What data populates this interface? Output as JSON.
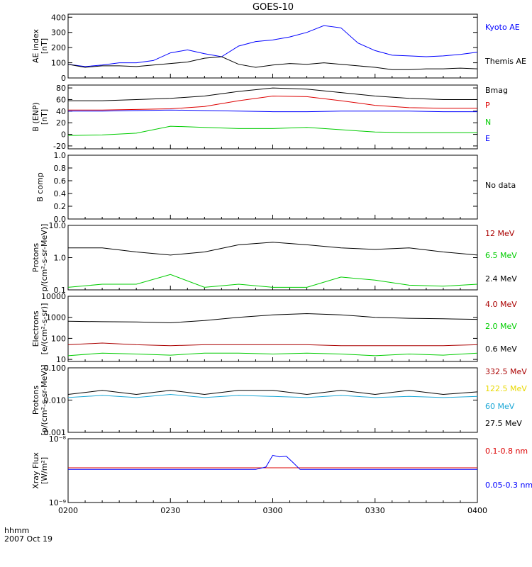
{
  "title": "GOES-10",
  "footer": {
    "line1": "hhmm",
    "line2": "2007 Oct 19"
  },
  "x_ticks": [
    "0200",
    "0230",
    "0300",
    "0330",
    "0400"
  ],
  "colors": {
    "black": "#000000",
    "blue": "#0000ff",
    "red": "#dd0000",
    "green": "#00cc00",
    "darkred": "#aa0000",
    "yellow": "#e8d800",
    "cyan": "#1ba7d6"
  },
  "chart_data": [
    {
      "id": "ae",
      "type": "line",
      "scale": "linear",
      "ylabel": [
        "AE index",
        "[nT]"
      ],
      "ylim": [
        0,
        420
      ],
      "yticks": [
        {
          "v": 0,
          "label": "0"
        },
        {
          "v": 100,
          "label": "100"
        },
        {
          "v": 200,
          "label": "200"
        },
        {
          "v": 300,
          "label": "300"
        },
        {
          "v": 400,
          "label": "400"
        }
      ],
      "legend": [
        {
          "label": "Kyoto AE",
          "color": "#0000ff"
        },
        {
          "label": "Themis AE",
          "color": "#000000"
        }
      ],
      "series": [
        {
          "name": "Kyoto AE",
          "color": "#0000ff",
          "x": [
            0,
            5,
            10,
            15,
            20,
            25,
            30,
            35,
            40,
            45,
            50,
            55,
            60,
            65,
            70,
            75,
            80,
            85,
            90,
            95,
            100,
            105,
            110,
            115,
            120
          ],
          "y": [
            90,
            75,
            85,
            100,
            100,
            115,
            165,
            185,
            160,
            140,
            210,
            240,
            250,
            270,
            300,
            345,
            330,
            230,
            180,
            150,
            145,
            140,
            145,
            155,
            170
          ]
        },
        {
          "name": "Themis AE",
          "color": "#000000",
          "x": [
            0,
            5,
            10,
            15,
            20,
            25,
            30,
            35,
            40,
            45,
            50,
            55,
            60,
            65,
            70,
            75,
            80,
            85,
            90,
            95,
            100,
            105,
            110,
            115,
            120
          ],
          "y": [
            90,
            70,
            80,
            80,
            75,
            85,
            95,
            105,
            130,
            140,
            90,
            70,
            85,
            95,
            90,
            100,
            90,
            80,
            70,
            55,
            55,
            60,
            60,
            65,
            60
          ]
        }
      ]
    },
    {
      "id": "b",
      "type": "line",
      "scale": "linear",
      "ylabel": [
        "B (ENP)",
        "[nT]"
      ],
      "ylim": [
        -25,
        85
      ],
      "yticks": [
        {
          "v": -20,
          "label": "-20"
        },
        {
          "v": 0,
          "label": "0"
        },
        {
          "v": 20,
          "label": "20"
        },
        {
          "v": 40,
          "label": "40"
        },
        {
          "v": 60,
          "label": "60"
        },
        {
          "v": 80,
          "label": "80"
        }
      ],
      "legend": [
        {
          "label": "Bmag",
          "color": "#000000"
        },
        {
          "label": "P",
          "color": "#dd0000"
        },
        {
          "label": "N",
          "color": "#00cc00"
        },
        {
          "label": "E",
          "color": "#0000ff"
        }
      ],
      "series": [
        {
          "name": "Bmag",
          "color": "#000000",
          "x": [
            0,
            10,
            20,
            30,
            40,
            50,
            60,
            70,
            80,
            90,
            100,
            110,
            120
          ],
          "y": [
            58,
            58,
            60,
            62,
            66,
            74,
            80,
            78,
            72,
            66,
            62,
            60,
            60
          ]
        },
        {
          "name": "P",
          "color": "#dd0000",
          "x": [
            0,
            10,
            20,
            30,
            40,
            50,
            60,
            70,
            80,
            90,
            100,
            110,
            120
          ],
          "y": [
            42,
            42,
            43,
            44,
            48,
            58,
            66,
            65,
            58,
            50,
            46,
            45,
            45
          ]
        },
        {
          "name": "E",
          "color": "#0000ff",
          "x": [
            0,
            10,
            20,
            30,
            40,
            50,
            60,
            70,
            80,
            90,
            100,
            110,
            120
          ],
          "y": [
            40,
            40,
            41,
            42,
            41,
            40,
            39,
            39,
            40,
            40,
            40,
            39,
            39
          ]
        },
        {
          "name": "N",
          "color": "#00cc00",
          "x": [
            0,
            10,
            20,
            30,
            40,
            50,
            60,
            70,
            80,
            90,
            100,
            110,
            120
          ],
          "y": [
            -2,
            -1,
            2,
            14,
            12,
            10,
            10,
            12,
            8,
            4,
            3,
            3,
            3
          ]
        }
      ]
    },
    {
      "id": "bcomp",
      "type": "line",
      "scale": "linear",
      "ylabel": [
        "B comp"
      ],
      "ylim": [
        0,
        1
      ],
      "yticks": [
        {
          "v": 0,
          "label": "0.0"
        },
        {
          "v": 0.2,
          "label": "0.2"
        },
        {
          "v": 0.4,
          "label": "0.4"
        },
        {
          "v": 0.6,
          "label": "0.6"
        },
        {
          "v": 0.8,
          "label": "0.8"
        },
        {
          "v": 1.0,
          "label": "1.0"
        }
      ],
      "legend": [
        {
          "label": "No data",
          "color": "#000000"
        }
      ],
      "series": []
    },
    {
      "id": "protons1",
      "type": "line",
      "scale": "log",
      "ylabel": [
        "Protons",
        "p/(cm²-s-sr-MeV)]"
      ],
      "ylim": [
        0.1,
        10
      ],
      "yticks": [
        {
          "v": 0.1,
          "label": "0.1"
        },
        {
          "v": 1,
          "label": "1.0"
        },
        {
          "v": 10,
          "label": "10.0"
        }
      ],
      "legend": [
        {
          "label": "12 MeV",
          "color": "#aa0000"
        },
        {
          "label": "6.5 MeV",
          "color": "#00cc00"
        },
        {
          "label": "2.4 MeV",
          "color": "#000000"
        }
      ],
      "series": [
        {
          "name": "2.4 MeV",
          "color": "#000000",
          "x": [
            0,
            10,
            20,
            30,
            40,
            50,
            60,
            70,
            80,
            90,
            100,
            110,
            120
          ],
          "y": [
            2,
            2,
            1.5,
            1.2,
            1.5,
            2.5,
            3,
            2.5,
            2,
            1.8,
            2,
            1.5,
            1.2
          ]
        },
        {
          "name": "6.5 MeV",
          "color": "#00cc00",
          "x": [
            0,
            10,
            20,
            30,
            40,
            50,
            60,
            70,
            80,
            90,
            100,
            110,
            120
          ],
          "y": [
            0.12,
            0.15,
            0.15,
            0.3,
            0.12,
            0.15,
            0.12,
            0.12,
            0.25,
            0.2,
            0.14,
            0.13,
            0.15
          ]
        }
      ]
    },
    {
      "id": "electrons",
      "type": "line",
      "scale": "log",
      "ylabel": [
        "Electrons",
        "[e/(cm²-s-sr)]"
      ],
      "ylim": [
        8,
        10000
      ],
      "yticks": [
        {
          "v": 10,
          "label": "10"
        },
        {
          "v": 100,
          "label": "100"
        },
        {
          "v": 1000,
          "label": "1000"
        },
        {
          "v": 10000,
          "label": "10000"
        }
      ],
      "legend": [
        {
          "label": "4.0 MeV",
          "color": "#aa0000"
        },
        {
          "label": "2.0 MeV",
          "color": "#00cc00"
        },
        {
          "label": "0.6 MeV",
          "color": "#000000"
        }
      ],
      "series": [
        {
          "name": "0.6 MeV",
          "color": "#000000",
          "x": [
            0,
            10,
            20,
            30,
            40,
            50,
            60,
            70,
            80,
            90,
            100,
            110,
            120
          ],
          "y": [
            650,
            620,
            600,
            550,
            700,
            1000,
            1300,
            1500,
            1300,
            1000,
            900,
            850,
            800
          ]
        },
        {
          "name": "4.0 MeV",
          "color": "#aa0000",
          "x": [
            0,
            10,
            20,
            30,
            40,
            50,
            60,
            70,
            80,
            90,
            100,
            110,
            120
          ],
          "y": [
            50,
            60,
            50,
            45,
            50,
            50,
            50,
            50,
            45,
            45,
            45,
            45,
            50
          ]
        },
        {
          "name": "2.0 MeV",
          "color": "#00cc00",
          "x": [
            0,
            10,
            20,
            30,
            40,
            50,
            60,
            70,
            80,
            90,
            100,
            110,
            120
          ],
          "y": [
            15,
            20,
            18,
            16,
            20,
            20,
            18,
            20,
            18,
            15,
            18,
            16,
            20
          ]
        }
      ]
    },
    {
      "id": "protons2",
      "type": "line",
      "scale": "log",
      "ylabel": [
        "Protons",
        "[p/(cm²-s-sr-MeV)]"
      ],
      "ylim": [
        0.001,
        0.1
      ],
      "yticks": [
        {
          "v": 0.001,
          "label": "0.001"
        },
        {
          "v": 0.01,
          "label": "0.010"
        },
        {
          "v": 0.1,
          "label": "0.100"
        }
      ],
      "legend": [
        {
          "label": "332.5 MeV",
          "color": "#aa0000"
        },
        {
          "label": "122.5 MeV",
          "color": "#e8d800"
        },
        {
          "label": "60 MeV",
          "color": "#1ba7d6"
        },
        {
          "label": "27.5 MeV",
          "color": "#000000"
        }
      ],
      "series": [
        {
          "name": "27.5 MeV",
          "color": "#000000",
          "x": [
            0,
            10,
            20,
            30,
            40,
            50,
            60,
            70,
            80,
            90,
            100,
            110,
            120
          ],
          "y": [
            0.015,
            0.02,
            0.015,
            0.02,
            0.015,
            0.02,
            0.02,
            0.015,
            0.02,
            0.015,
            0.02,
            0.015,
            0.018
          ]
        },
        {
          "name": "60 MeV",
          "color": "#1ba7d6",
          "x": [
            0,
            10,
            20,
            30,
            40,
            50,
            60,
            70,
            80,
            90,
            100,
            110,
            120
          ],
          "y": [
            0.012,
            0.014,
            0.012,
            0.015,
            0.012,
            0.014,
            0.013,
            0.012,
            0.014,
            0.012,
            0.013,
            0.012,
            0.013
          ]
        }
      ]
    },
    {
      "id": "xray",
      "type": "line",
      "scale": "log",
      "ylabel": [
        "Xray Flux",
        "[W/m²]"
      ],
      "ylim": [
        1e-09,
        1e-08
      ],
      "yticks": [
        {
          "v": 1e-09,
          "label": "10⁻⁹"
        },
        {
          "v": 1e-08,
          "label": "10⁻⁸"
        }
      ],
      "legend": [
        {
          "label": "0.1-0.8 nm",
          "color": "#dd0000"
        },
        {
          "label": "0.05-0.3 nm",
          "color": "#0000ff"
        }
      ],
      "series": [
        {
          "name": "0.1-0.8 nm",
          "color": "#dd0000",
          "x": [
            0,
            120
          ],
          "y": [
            3.5e-09,
            3.5e-09
          ]
        },
        {
          "name": "0.05-0.3 nm",
          "color": "#0000ff",
          "x": [
            0,
            55,
            58,
            60,
            62,
            64,
            66,
            68,
            120
          ],
          "y": [
            3.3e-09,
            3.3e-09,
            3.6e-09,
            5.5e-09,
            5.2e-09,
            5.3e-09,
            4.2e-09,
            3.3e-09,
            3.3e-09
          ]
        }
      ]
    }
  ]
}
